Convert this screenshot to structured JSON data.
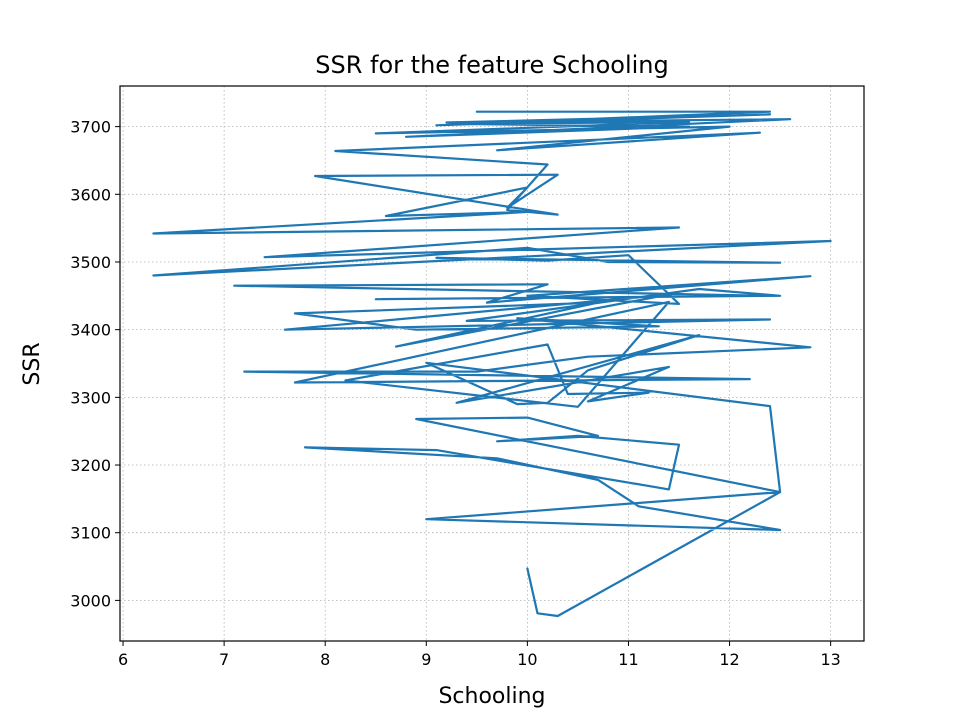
{
  "chart_data": {
    "type": "line",
    "title": "SSR for the feature Schooling",
    "xlabel": "Schooling",
    "ylabel": "SSR",
    "xlim": [
      5.97,
      13.33
    ],
    "ylim": [
      2940,
      3760
    ],
    "xticks": [
      6,
      7,
      8,
      9,
      10,
      11,
      12,
      13
    ],
    "yticks": [
      3000,
      3100,
      3200,
      3300,
      3400,
      3500,
      3600,
      3700
    ],
    "grid": true,
    "grid_style": "dotted",
    "series": [
      {
        "color": "#1f77b4",
        "x": [
          9.5,
          12.4,
          9.1,
          12.4,
          9.2,
          12.6,
          8.8,
          11.6,
          9.3,
          11.6,
          8.5,
          12.0,
          9.7,
          12.3,
          8.1,
          10.2,
          9.8,
          10.3,
          7.9,
          10.3,
          9.8,
          10.0,
          8.6,
          10.0,
          6.3,
          11.5,
          7.4,
          13.0,
          6.3,
          10.0,
          10.8,
          12.5,
          9.1,
          10.2,
          11.0,
          11.5,
          10.0,
          12.8,
          9.6,
          10.2,
          7.1,
          12.4,
          8.5,
          12.5,
          11.7,
          9.4,
          12.4,
          7.6,
          11.4,
          8.7,
          10.7,
          7.7,
          8.9,
          11.3,
          9.9,
          12.8,
          10.6,
          9.5,
          7.2,
          12.2,
          7.7,
          11.4,
          10.5,
          8.2,
          10.2,
          10.4,
          11.2,
          10.6,
          11.4,
          9.3,
          11.7,
          10.6,
          10.2,
          9.9,
          9.0,
          12.4,
          12.5,
          8.9,
          10.0,
          10.7,
          9.7,
          10.5,
          11.5,
          11.4,
          9.1,
          7.8,
          9.7,
          10.7,
          11.1,
          12.5,
          9.0,
          12.5,
          10.3,
          10.1,
          10.0
        ],
        "y": [
          3722,
          3722,
          3702,
          3718,
          3706,
          3711,
          3685,
          3700,
          3704,
          3707,
          3690,
          3700,
          3665,
          3691,
          3664,
          3644,
          3577,
          3570,
          3627,
          3629,
          3580,
          3610,
          3568,
          3574,
          3542,
          3551,
          3507,
          3531,
          3480,
          3521,
          3500,
          3499,
          3506,
          3502,
          3510,
          3438,
          3450,
          3479,
          3440,
          3467,
          3465,
          3450,
          3445,
          3450,
          3460,
          3413,
          3415,
          3400,
          3452,
          3375,
          3440,
          3424,
          3400,
          3405,
          3417,
          3374,
          3360,
          3338,
          3338,
          3327,
          3322,
          3441,
          3286,
          3325,
          3378,
          3305,
          3307,
          3294,
          3345,
          3292,
          3392,
          3340,
          3292,
          3290,
          3351,
          3287,
          3160,
          3268,
          3270,
          3243,
          3235,
          3243,
          3230,
          3164,
          3222,
          3226,
          3210,
          3178,
          3139,
          3104,
          3120,
          3160,
          2977,
          2981,
          3047
        ]
      }
    ]
  }
}
